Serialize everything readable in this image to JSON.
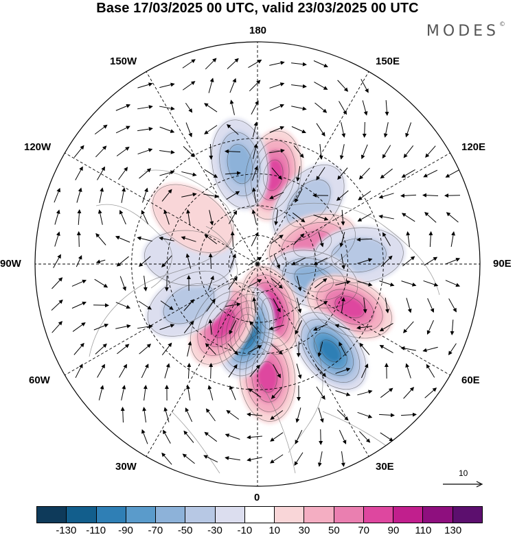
{
  "title": "Base 17/03/2025 00 UTC, valid 23/03/2025 00 UTC",
  "brand": {
    "name": "MODES",
    "mark": "©"
  },
  "longitude_labels": [
    "180",
    "150E",
    "120E",
    "90E",
    "60E",
    "30E",
    "0",
    "30W",
    "60W",
    "90W",
    "120W",
    "150W"
  ],
  "vector_scale": {
    "value": "10"
  },
  "colorbar": {
    "colors": [
      "#0e3a5a",
      "#125e8c",
      "#2f7fb5",
      "#5a9bcb",
      "#8db2d9",
      "#b7c8e4",
      "#dcdeef",
      "#ffffff",
      "#f9d6d8",
      "#f4aec2",
      "#ea7fb0",
      "#de479f",
      "#c11f8d",
      "#8e0f7e",
      "#5c0f6e"
    ],
    "tick_labels": [
      "-130",
      "-110",
      "-90",
      "-70",
      "-50",
      "-30",
      "-10",
      "10",
      "30",
      "50",
      "70",
      "90",
      "110",
      "130"
    ]
  },
  "map_data": {
    "projection": "north polar stereographic",
    "pole_at_center": true,
    "anomaly_centers": [
      {
        "lon": 170,
        "lat": 45,
        "value": 90
      },
      {
        "lon": -170,
        "lat": 40,
        "value": -60
      },
      {
        "lon": 140,
        "lat": 50,
        "value": -50
      },
      {
        "lon": 110,
        "lat": 60,
        "value": 70
      },
      {
        "lon": 95,
        "lat": 40,
        "value": -50
      },
      {
        "lon": 75,
        "lat": 60,
        "value": -70
      },
      {
        "lon": 65,
        "lat": 40,
        "value": 80
      },
      {
        "lon": 40,
        "lat": 35,
        "value": -100
      },
      {
        "lon": 15,
        "lat": 65,
        "value": 100
      },
      {
        "lon": 5,
        "lat": 35,
        "value": 80
      },
      {
        "lon": -10,
        "lat": 55,
        "value": -120
      },
      {
        "lon": -30,
        "lat": 55,
        "value": 90
      },
      {
        "lon": -60,
        "lat": 50,
        "value": -40
      },
      {
        "lon": -95,
        "lat": 55,
        "value": -30
      },
      {
        "lon": -125,
        "lat": 50,
        "value": 30
      }
    ]
  }
}
